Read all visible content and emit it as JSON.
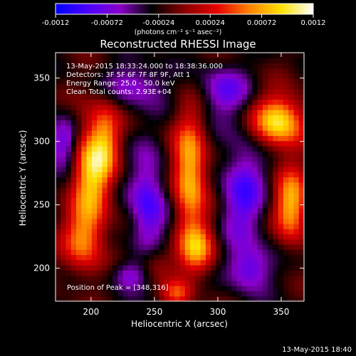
{
  "colorbar": {
    "tick_labels": [
      "-0.0012",
      "-0.00072",
      "-0.00024",
      "0.00024",
      "0.00072",
      "0.0012"
    ],
    "units": "(photons cm⁻² s⁻¹ asec⁻²)",
    "colors": [
      "#0000ff",
      "#4a00ff",
      "#8a00c8",
      "#000000",
      "#8a0000",
      "#e40000",
      "#ff8000",
      "#ffe000",
      "#ffffff"
    ]
  },
  "annotations": {
    "time_range": "13-May-2015 18:33:24.000 to 18:38:36.000",
    "detectors": "Detectors: 3F 5F 6F 7F 8F 9F, Att 1",
    "energy": "Energy Range: 25.0 - 50.0 keV",
    "clean": "Clean    Total counts: 2.93E+04",
    "peak": "Position of Peak = [348,316]"
  },
  "footer": {
    "timestamp": "13-May-2015 18:40"
  },
  "chart_data": {
    "type": "heatmap",
    "title": "Reconstructed RHESSI Image",
    "xlabel": "Heliocentric X (arcsec)",
    "ylabel": "Heliocentric Y (arcsec)",
    "xlim": [
      172,
      368
    ],
    "ylim": [
      174,
      370
    ],
    "x_ticks": [
      200,
      250,
      300,
      350
    ],
    "y_ticks": [
      200,
      250,
      300,
      350
    ],
    "color_range": [
      -0.0012,
      0.0012
    ],
    "grid": false,
    "sources": [
      {
        "x": 348,
        "y": 316,
        "sx": 14,
        "sy": 14,
        "amp": 1.0
      },
      {
        "x": 200,
        "y": 275,
        "sx": 10,
        "sy": 30,
        "amp": 0.85
      },
      {
        "x": 212,
        "y": 300,
        "sx": 8,
        "sy": 22,
        "amp": 0.55
      },
      {
        "x": 193,
        "y": 222,
        "sx": 11,
        "sy": 18,
        "amp": 0.6
      },
      {
        "x": 278,
        "y": 275,
        "sx": 9,
        "sy": 32,
        "amp": 0.9
      },
      {
        "x": 284,
        "y": 215,
        "sx": 10,
        "sy": 14,
        "amp": 0.7
      },
      {
        "x": 358,
        "y": 250,
        "sx": 9,
        "sy": 20,
        "amp": 0.85
      },
      {
        "x": 268,
        "y": 180,
        "sx": 8,
        "sy": 8,
        "amp": 0.5
      },
      {
        "x": 250,
        "y": 205,
        "sx": 10,
        "sy": 10,
        "amp": 0.35
      },
      {
        "x": 245,
        "y": 250,
        "sx": 10,
        "sy": 28,
        "amp": -0.6
      },
      {
        "x": 320,
        "y": 260,
        "sx": 12,
        "sy": 30,
        "amp": -0.55
      },
      {
        "x": 305,
        "y": 340,
        "sx": 14,
        "sy": 14,
        "amp": -0.45
      },
      {
        "x": 235,
        "y": 345,
        "sx": 16,
        "sy": 12,
        "amp": -0.4
      },
      {
        "x": 178,
        "y": 300,
        "sx": 8,
        "sy": 14,
        "amp": -0.5
      },
      {
        "x": 325,
        "y": 200,
        "sx": 12,
        "sy": 12,
        "amp": -0.5
      },
      {
        "x": 230,
        "y": 195,
        "sx": 10,
        "sy": 8,
        "amp": -0.4
      }
    ]
  }
}
